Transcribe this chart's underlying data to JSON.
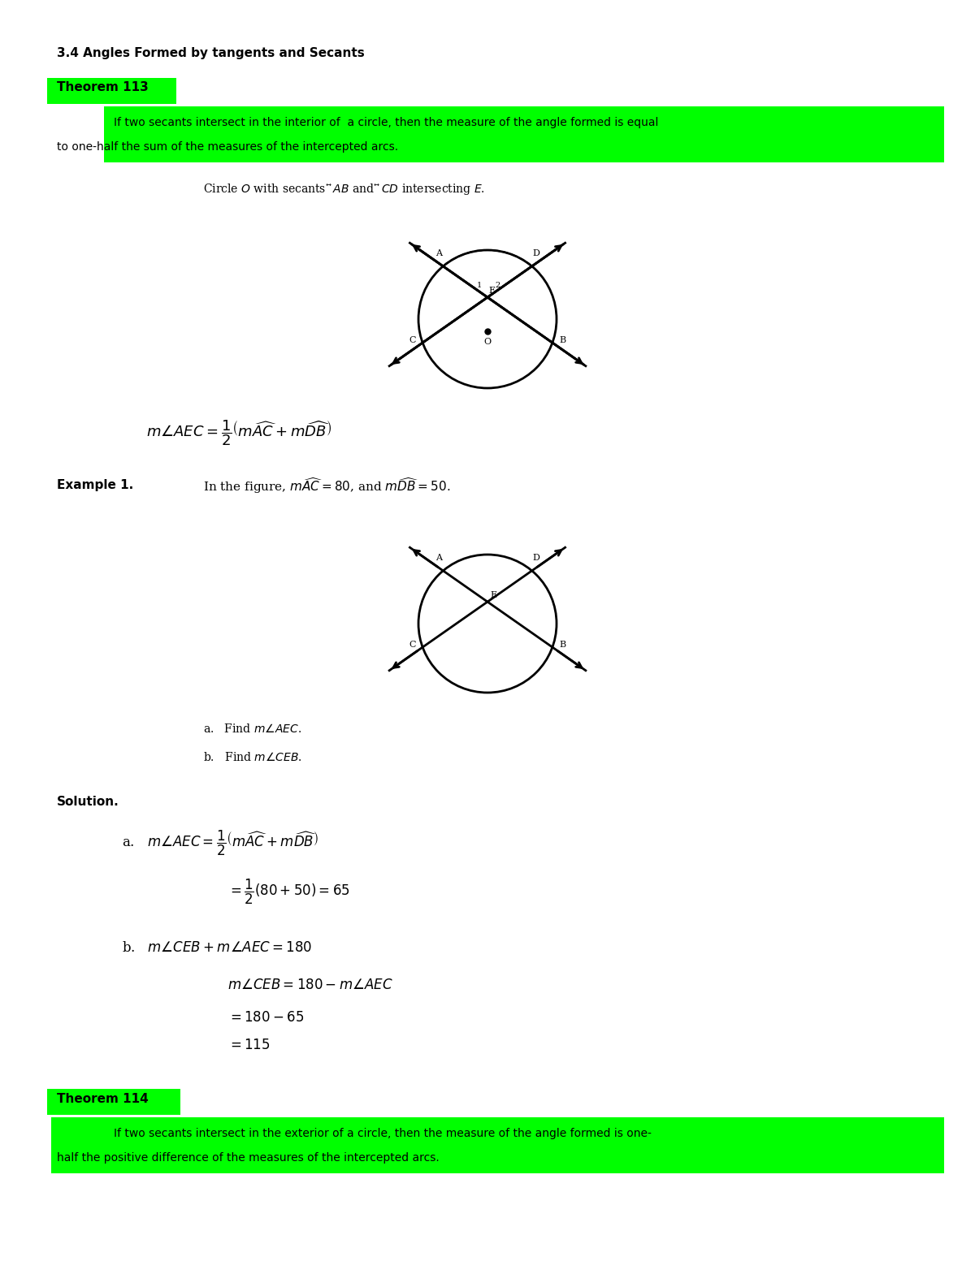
{
  "title": "3.4 Angles Formed by tangents and Secants",
  "theorem113_label": "Theorem 113",
  "theorem113_text": "If two secants intersect in the interior of  a circle, then the measure of the angle formed is equal\nto one-half the sum of the measures of the intercepted arcs.",
  "circle1_caption": "Circle O with secants $\\overleftrightarrow{AB}$ and $\\overleftrightarrow{CD}$ intersecting $E$.",
  "formula1": "$m\\angle AEC = \\dfrac{1}{2}\\left(m\\widehat{AC} + m\\widehat{DB}\\right)$",
  "example1_label": "Example 1.",
  "example1_text": "In the figure, $m\\widehat{AC} = 80$, and $m\\widehat{DB} = 50$.",
  "find_a": "a.   Find $m\\angle AEC$.",
  "find_b": "b.   Find $m\\angle CEB$.",
  "solution_label": "Solution.",
  "sol_a_line1": "a.   $m\\angle AEC = \\dfrac{1}{2}\\left(m\\widehat{AC} + m\\widehat{DB}\\right)$",
  "sol_a_line2": "$= \\dfrac{1}{2}(80 + 50) = 65$",
  "sol_b_line1": "b.   $m\\angle CEB + m\\angle AEC = 180$",
  "sol_b_line2": "$m\\angle CEB = 180 - m\\angle AEC$",
  "sol_b_line3": "$= 180 - 65$",
  "sol_b_line4": "$= 115$",
  "theorem114_label": "Theorem 114",
  "theorem114_text": "If two secants intersect in the exterior of a circle, then the measure of the angle formed is one-\nhalf the positive difference of the measures of the intercepted arcs.",
  "highlight_green": "#00FF00",
  "bg_color": "#FFFFFF",
  "text_color": "#000000"
}
